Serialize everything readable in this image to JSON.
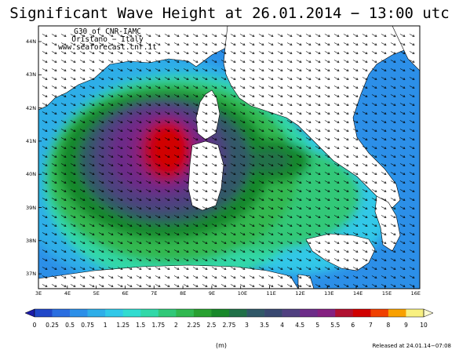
{
  "title": "Significant Wave Height at 26.01.2014 − 13:00 utc",
  "attribution": {
    "line1": "G30 of CNR-IAMC",
    "line2": "Oristano − Italy",
    "line3": "www.seaforecast.cnr.it"
  },
  "map": {
    "lat_labels": [
      "44N",
      "43N",
      "42N",
      "41N",
      "40N",
      "39N",
      "38N",
      "37N"
    ],
    "lon_labels": [
      "3E",
      "4E",
      "5E",
      "6E",
      "7E",
      "8E",
      "9E",
      "10E",
      "11E",
      "12E",
      "13E",
      "14E",
      "15E",
      "16E"
    ],
    "land_color": "#ffffff",
    "wave_direction": "south-east"
  },
  "colorbar": {
    "unit_label": "(m)",
    "ticks": [
      "0",
      "0.25",
      "0.5",
      "0.75",
      "1",
      "1.25",
      "1.5",
      "1.75",
      "2",
      "2.25",
      "2.5",
      "2.75",
      "3",
      "3.5",
      "4",
      "4.5",
      "5",
      "5.5",
      "6",
      "7",
      "8",
      "9",
      "10"
    ],
    "colors": [
      "#1c1ca8",
      "#2047c8",
      "#2a6ee0",
      "#2c8fe8",
      "#2eaee8",
      "#30c8e8",
      "#30dcd0",
      "#30d8a8",
      "#30c878",
      "#30b850",
      "#28a030",
      "#18882a",
      "#207048",
      "#305868",
      "#384870",
      "#504080",
      "#6c2c88",
      "#842080",
      "#b01030",
      "#d00000",
      "#f04000",
      "#f8a000",
      "#f8f080",
      "#fffdd0"
    ]
  },
  "released": "Released at 24.01.14−07:08"
}
